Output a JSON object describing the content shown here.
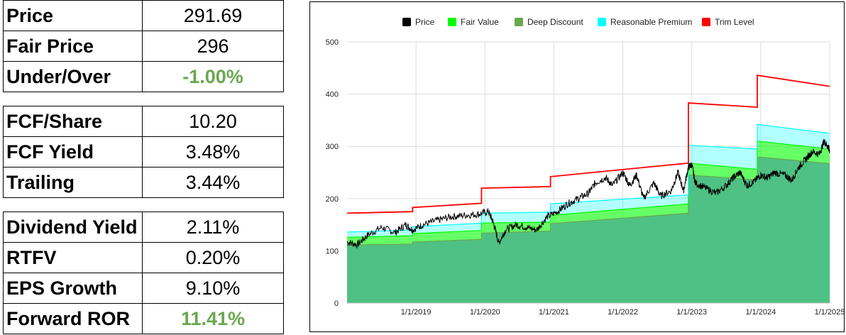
{
  "metrics_table_1": [
    {
      "label": "Price",
      "value": "291.69",
      "highlight": false
    },
    {
      "label": "Fair Price",
      "value": "296",
      "highlight": false
    },
    {
      "label": "Under/Over",
      "value": "-1.00%",
      "highlight": true
    }
  ],
  "metrics_table_2": [
    {
      "label": "FCF/Share",
      "value": "10.20",
      "highlight": false
    },
    {
      "label": "FCF Yield",
      "value": "3.48%",
      "highlight": false
    },
    {
      "label": "Trailing",
      "value": "3.44%",
      "highlight": false
    }
  ],
  "metrics_table_3": [
    {
      "label": "Dividend Yield",
      "value": "2.11%",
      "highlight": false
    },
    {
      "label": "RTFV",
      "value": "0.20%",
      "highlight": false
    },
    {
      "label": "EPS Growth",
      "value": "9.10%",
      "highlight": false
    },
    {
      "label": "Forward ROR",
      "value": "11.41%",
      "highlight": true
    }
  ],
  "colors": {
    "highlight_green": "#6aa84f",
    "price": "#000000",
    "fair_value": "#00ff00",
    "deep_discount": "#6aa84f",
    "deep_discount_fill": "#4fc184",
    "reasonable_premium": "#00ffff",
    "trim_level": "#ff0000"
  },
  "chart_data": {
    "type": "line",
    "title": "",
    "xlabel": "",
    "ylabel": "",
    "legend_position": "top",
    "grid": true,
    "x_ticks": [
      "1/1/2019",
      "1/1/2020",
      "1/1/2021",
      "1/1/2022",
      "1/1/2023",
      "1/1/2024",
      "1/1/2025"
    ],
    "y_ticks": [
      0,
      100,
      200,
      300,
      400,
      500
    ],
    "xlim": [
      2018.0,
      2025.0
    ],
    "ylim": [
      0,
      500
    ],
    "legend": [
      "Price",
      "Fair Value",
      "Deep Discount",
      "Reasonable Premium",
      "Trim Level"
    ],
    "series": [
      {
        "name": "Price",
        "points": [
          [
            2018.0,
            117
          ],
          [
            2018.15,
            112
          ],
          [
            2018.3,
            130
          ],
          [
            2018.5,
            145
          ],
          [
            2018.7,
            135
          ],
          [
            2018.85,
            150
          ],
          [
            2018.95,
            140
          ],
          [
            2019.1,
            150
          ],
          [
            2019.3,
            158
          ],
          [
            2019.5,
            165
          ],
          [
            2019.7,
            168
          ],
          [
            2019.9,
            170
          ],
          [
            2020.05,
            175
          ],
          [
            2020.12,
            155
          ],
          [
            2020.2,
            115
          ],
          [
            2020.3,
            140
          ],
          [
            2020.45,
            150
          ],
          [
            2020.6,
            145
          ],
          [
            2020.75,
            140
          ],
          [
            2020.9,
            165
          ],
          [
            2021.05,
            175
          ],
          [
            2021.2,
            190
          ],
          [
            2021.35,
            200
          ],
          [
            2021.5,
            210
          ],
          [
            2021.6,
            230
          ],
          [
            2021.75,
            240
          ],
          [
            2021.85,
            225
          ],
          [
            2022.0,
            250
          ],
          [
            2022.1,
            225
          ],
          [
            2022.2,
            245
          ],
          [
            2022.3,
            200
          ],
          [
            2022.45,
            230
          ],
          [
            2022.55,
            205
          ],
          [
            2022.7,
            215
          ],
          [
            2022.8,
            250
          ],
          [
            2022.88,
            215
          ],
          [
            2022.95,
            260
          ],
          [
            2023.0,
            265
          ],
          [
            2023.05,
            230
          ],
          [
            2023.2,
            220
          ],
          [
            2023.35,
            210
          ],
          [
            2023.5,
            225
          ],
          [
            2023.6,
            240
          ],
          [
            2023.7,
            250
          ],
          [
            2023.8,
            225
          ],
          [
            2023.9,
            232
          ],
          [
            2024.0,
            245
          ],
          [
            2024.1,
            240
          ],
          [
            2024.2,
            250
          ],
          [
            2024.35,
            245
          ],
          [
            2024.45,
            235
          ],
          [
            2024.55,
            260
          ],
          [
            2024.65,
            275
          ],
          [
            2024.75,
            290
          ],
          [
            2024.85,
            285
          ],
          [
            2024.92,
            310
          ],
          [
            2024.97,
            300
          ],
          [
            2025.0,
            292
          ]
        ]
      },
      {
        "name": "Fair Value",
        "points": [
          [
            2018.0,
            126
          ],
          [
            2018.95,
            129
          ],
          [
            2018.95,
            133
          ],
          [
            2019.95,
            139
          ],
          [
            2019.95,
            153
          ],
          [
            2020.95,
            155
          ],
          [
            2020.95,
            168
          ],
          [
            2022.95,
            190
          ],
          [
            2022.95,
            268
          ],
          [
            2023.95,
            256
          ],
          [
            2023.95,
            310
          ],
          [
            2025.0,
            295
          ]
        ]
      },
      {
        "name": "Deep Discount",
        "points": [
          [
            2018.0,
            111
          ],
          [
            2018.95,
            113
          ],
          [
            2018.95,
            117
          ],
          [
            2019.95,
            122
          ],
          [
            2019.95,
            134
          ],
          [
            2020.95,
            138
          ],
          [
            2020.95,
            152
          ],
          [
            2022.95,
            172
          ],
          [
            2022.95,
            245
          ],
          [
            2023.95,
            236
          ],
          [
            2023.95,
            280
          ],
          [
            2025.0,
            267
          ]
        ]
      },
      {
        "name": "Reasonable Premium",
        "points": [
          [
            2018.0,
            136
          ],
          [
            2018.95,
            140
          ],
          [
            2018.95,
            146
          ],
          [
            2019.95,
            153
          ],
          [
            2019.95,
            172
          ],
          [
            2020.95,
            174
          ],
          [
            2020.95,
            190
          ],
          [
            2022.95,
            207
          ],
          [
            2022.95,
            302
          ],
          [
            2023.95,
            295
          ],
          [
            2023.95,
            342
          ],
          [
            2025.0,
            325
          ]
        ]
      },
      {
        "name": "Trim Level",
        "points": [
          [
            2018.0,
            172
          ],
          [
            2018.95,
            175
          ],
          [
            2018.95,
            183
          ],
          [
            2019.95,
            191
          ],
          [
            2019.95,
            220
          ],
          [
            2020.95,
            223
          ],
          [
            2020.95,
            242
          ],
          [
            2022.95,
            268
          ],
          [
            2022.95,
            383
          ],
          [
            2023.95,
            375
          ],
          [
            2023.95,
            436
          ],
          [
            2025.0,
            415
          ]
        ]
      }
    ]
  }
}
